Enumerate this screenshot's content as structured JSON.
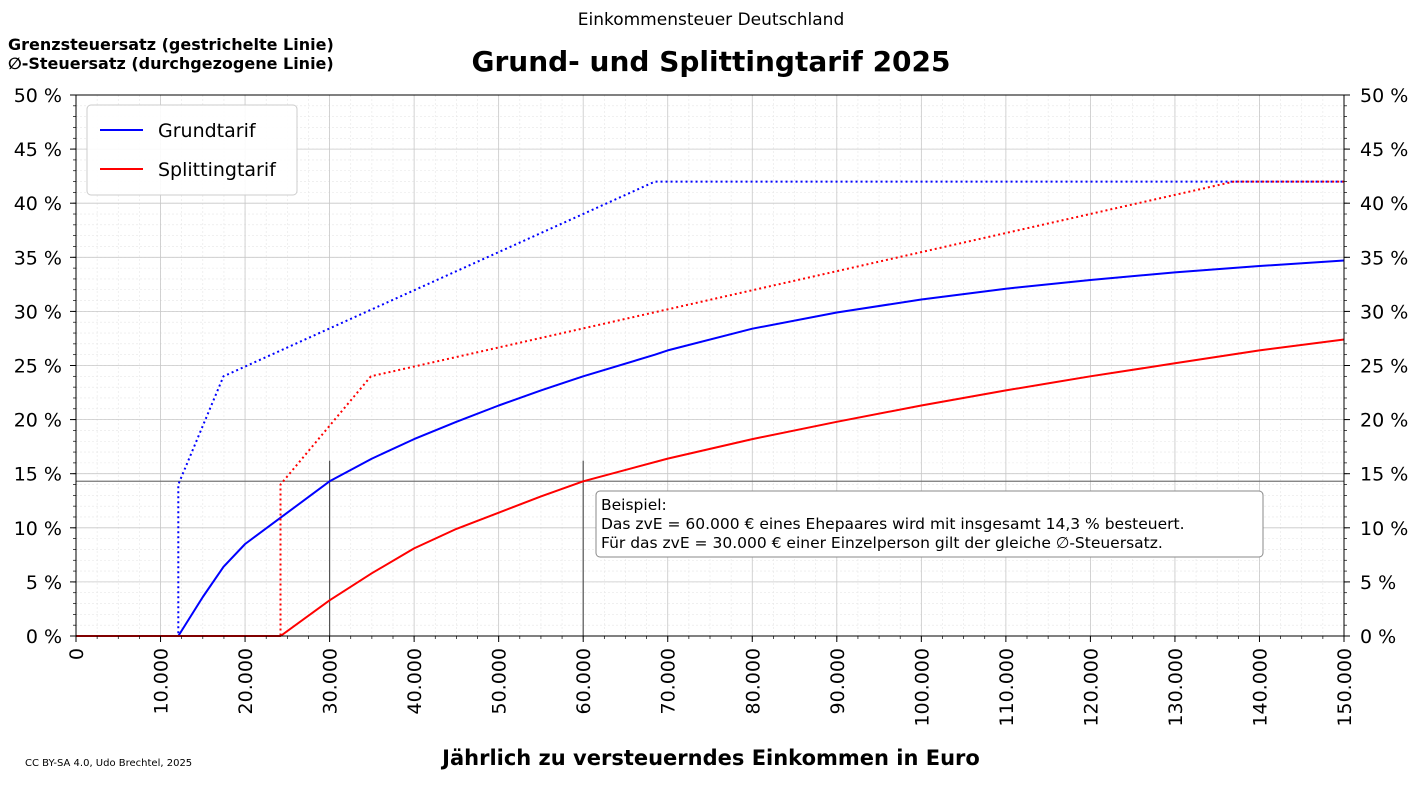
{
  "header": {
    "suptitle": "Einkommensteuer Deutschland",
    "title": "Grund- und Splittingtarif 2025",
    "note_line1": "Grenzsteuersatz (gestrichelte Linie)",
    "note_line2": "∅-Steuersatz (durchgezogene Linie)",
    "credit": "CC BY-SA 4.0, Udo Brechtel, 2025"
  },
  "annotation": {
    "line1": "Beispiel:",
    "line2": "Das zvE = 60.000 € eines Ehepaares wird mit insgesamt 14,3 % besteuert.",
    "line3": "Für das zvE = 30.000 € einer Einzelperson gilt der gleiche ∅-Steuersatz."
  },
  "chart_data": {
    "type": "line",
    "title": "Grund- und Splittingtarif 2025",
    "xlabel": "Jährlich zu versteuerndes Einkommen in Euro",
    "ylabel": "",
    "xlim": [
      0,
      150000
    ],
    "ylim": [
      0,
      50
    ],
    "x_ticks": [
      0,
      10000,
      20000,
      30000,
      40000,
      50000,
      60000,
      70000,
      80000,
      90000,
      100000,
      110000,
      120000,
      130000,
      140000,
      150000
    ],
    "x_tick_labels": [
      "0",
      "10.000",
      "20.000",
      "30.000",
      "40.000",
      "50.000",
      "60.000",
      "70.000",
      "80.000",
      "90.000",
      "100.000",
      "110.000",
      "120.000",
      "130.000",
      "140.000",
      "150.000"
    ],
    "y_ticks": [
      0,
      5,
      10,
      15,
      20,
      25,
      30,
      35,
      40,
      45,
      50
    ],
    "y_tick_labels": [
      "0 %",
      "5 %",
      "10 %",
      "15 %",
      "20 %",
      "25 %",
      "30 %",
      "35 %",
      "40 %",
      "45 %",
      "50 %"
    ],
    "grid": true,
    "legend_position": "top-left",
    "colors": {
      "grundtarif": "#0000ff",
      "splittingtarif": "#ff0000"
    },
    "series": [
      {
        "name": "Grundtarif",
        "style": "solid",
        "x": [
          0,
          12096,
          15000,
          17443,
          20000,
          25000,
          30000,
          35000,
          40000,
          45000,
          50000,
          55000,
          60000,
          68480,
          70000,
          80000,
          90000,
          100000,
          110000,
          120000,
          130000,
          140000,
          150000
        ],
        "y": [
          0,
          0,
          3.6,
          6.4,
          8.5,
          11.4,
          14.3,
          16.4,
          18.2,
          19.8,
          21.3,
          22.7,
          24.0,
          26.0,
          26.4,
          28.4,
          29.9,
          31.1,
          32.1,
          32.9,
          33.6,
          34.2,
          34.7
        ]
      },
      {
        "name": "",
        "style": "dotted",
        "x": [
          0,
          12096,
          12097,
          17443,
          68480,
          150000
        ],
        "y": [
          0,
          0,
          14,
          24,
          42,
          42
        ]
      },
      {
        "name": "Splittingtarif",
        "style": "solid",
        "x": [
          0,
          24192,
          30000,
          35000,
          40000,
          45000,
          50000,
          55000,
          60000,
          70000,
          80000,
          90000,
          100000,
          110000,
          120000,
          130000,
          140000,
          150000
        ],
        "y": [
          0,
          0,
          3.3,
          5.8,
          8.1,
          9.9,
          11.4,
          12.9,
          14.3,
          16.4,
          18.2,
          19.8,
          21.3,
          22.7,
          24.0,
          25.2,
          26.4,
          27.4
        ]
      },
      {
        "name": "",
        "style": "dotted",
        "x": [
          0,
          24192,
          24193,
          34886,
          136960,
          150000
        ],
        "y": [
          0,
          0,
          14,
          24,
          42,
          42
        ]
      }
    ],
    "reference_lines": {
      "horizontal_y": 14.3,
      "vertical_x": [
        30000,
        60000
      ]
    }
  }
}
